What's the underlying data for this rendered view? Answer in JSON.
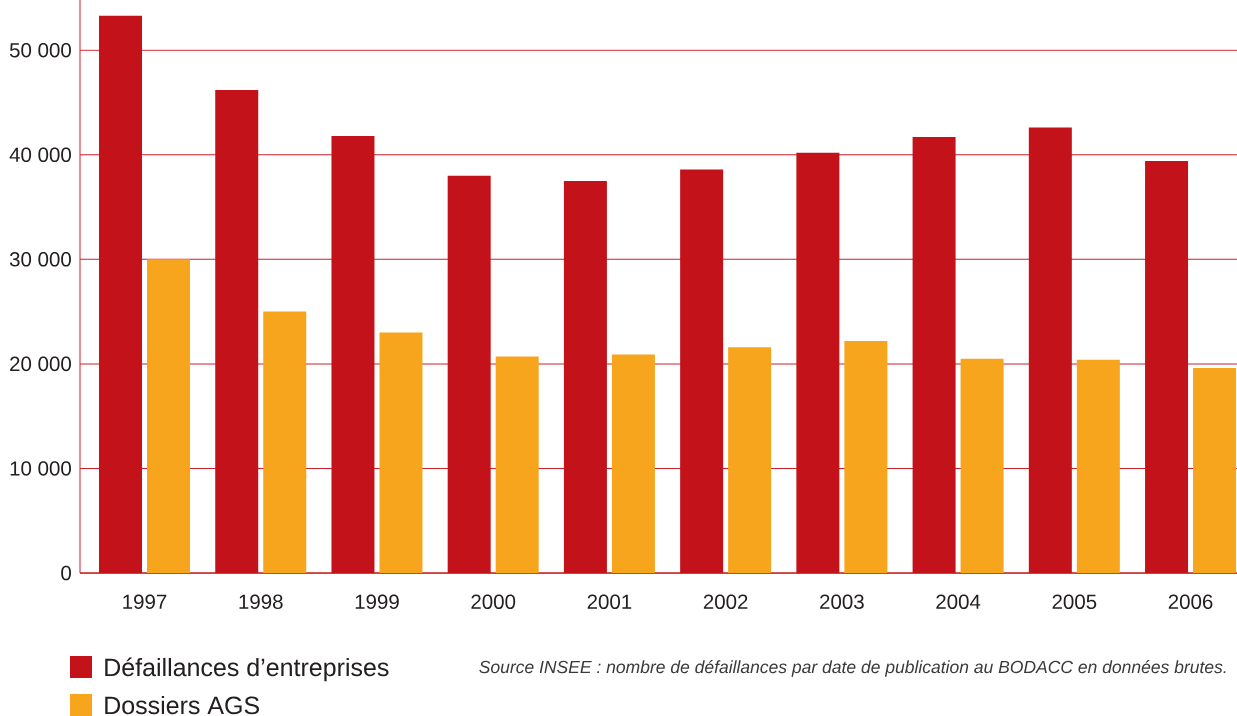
{
  "chart_data": {
    "type": "bar",
    "categories": [
      "1997",
      "1998",
      "1999",
      "2000",
      "2001",
      "2002",
      "2003",
      "2004",
      "2005",
      "2006"
    ],
    "series": [
      {
        "name": "Défaillances d’entreprises",
        "color": "#c4121a",
        "values": [
          53300,
          46200,
          41800,
          38000,
          37500,
          38600,
          40200,
          41700,
          42600,
          39400
        ]
      },
      {
        "name": "Dossiers AGS",
        "color": "#f6a51d",
        "values": [
          30000,
          25000,
          23000,
          20700,
          20900,
          21600,
          22200,
          20500,
          20400,
          19600
        ]
      }
    ],
    "ylim": [
      0,
      54800
    ],
    "yticks": [
      0,
      {
        "value": 10000,
        "label": "10 000"
      },
      {
        "value": 20000,
        "label": "20 000"
      },
      {
        "value": 30000,
        "label": "30 000"
      },
      {
        "value": 40000,
        "label": "40 000"
      },
      {
        "value": 50000,
        "label": "50 000"
      }
    ],
    "grid": "y",
    "legend": "bottom left",
    "annotations": [
      "Source INSEE : nombre de défaillances par date de publication au BODACC en données brutes."
    ]
  }
}
